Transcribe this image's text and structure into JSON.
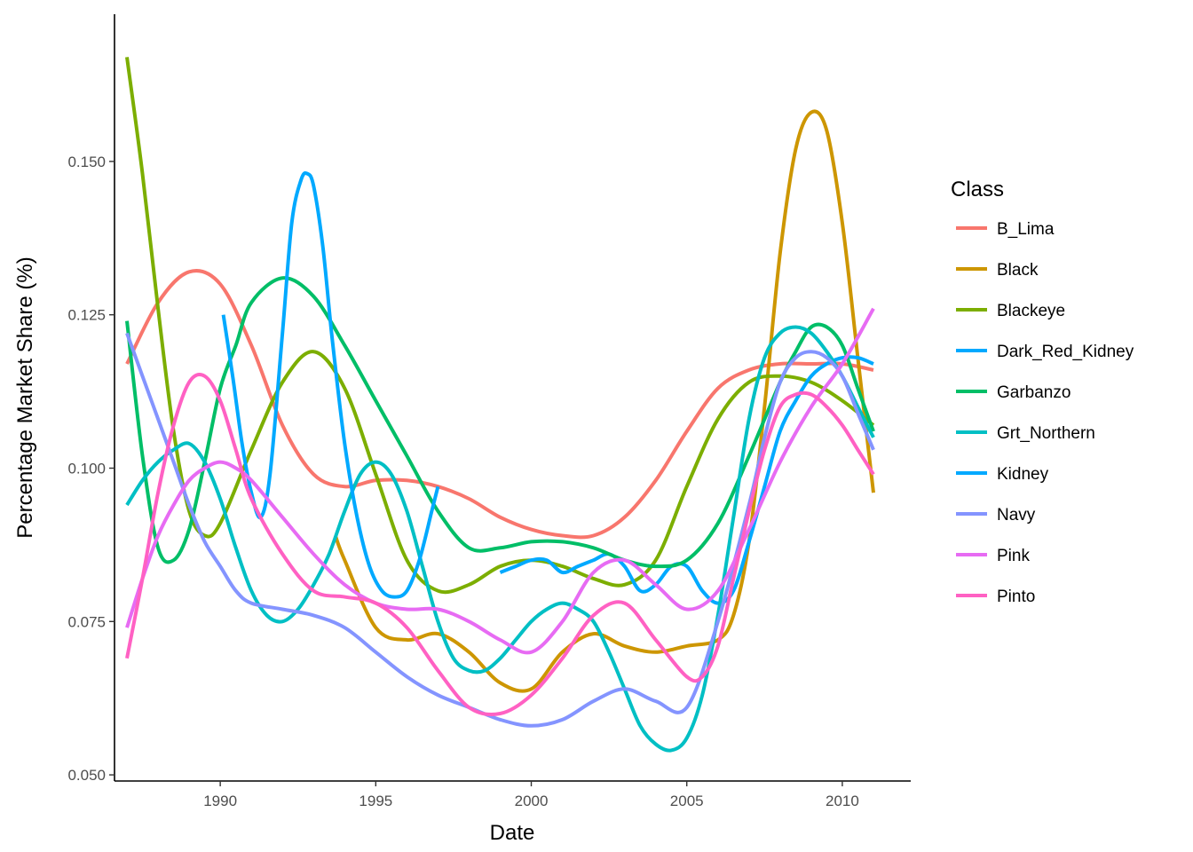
{
  "chart_data": {
    "type": "line",
    "xlabel": "Date",
    "ylabel": "Percentage Market Share (%)",
    "xlim": [
      1986.6,
      2012.2
    ],
    "ylim": [
      0.049,
      0.174
    ],
    "x_ticks": [
      1990,
      1995,
      2000,
      2005,
      2010
    ],
    "y_ticks": [
      0.05,
      0.075,
      0.1,
      0.125,
      0.15
    ],
    "x_tick_labels": [
      "1990",
      "1995",
      "2000",
      "2005",
      "2010"
    ],
    "y_tick_labels": [
      "0.050",
      "0.075",
      "0.100",
      "0.125",
      "0.150"
    ],
    "grid": false,
    "legend": {
      "title": "Class",
      "placement": "right"
    },
    "series": [
      {
        "name": "B_Lima",
        "color": "#F8766D",
        "x": [
          1987,
          1988,
          1989,
          1990,
          1991,
          1992,
          1993,
          1994,
          1995,
          1996,
          1997,
          1998,
          1999,
          2000,
          2001,
          2002,
          2003,
          2004,
          2005,
          2006,
          2007,
          2008,
          2009,
          2010,
          2011
        ],
        "y": [
          0.117,
          0.127,
          0.132,
          0.13,
          0.12,
          0.107,
          0.099,
          0.097,
          0.098,
          0.098,
          0.097,
          0.095,
          0.092,
          0.09,
          0.089,
          0.089,
          0.092,
          0.098,
          0.106,
          0.113,
          0.116,
          0.117,
          0.117,
          0.117,
          0.116
        ]
      },
      {
        "name": "Black",
        "color": "#CD9600",
        "x": [
          1993.7,
          1994,
          1995,
          1996,
          1997,
          1998,
          1999,
          2000,
          2001,
          2002,
          2003,
          2004,
          2005,
          2006,
          2006.5,
          2007,
          2007.5,
          2008,
          2008.5,
          2009,
          2009.5,
          2010,
          2010.5,
          2011
        ],
        "y": [
          0.089,
          0.085,
          0.074,
          0.072,
          0.073,
          0.07,
          0.065,
          0.064,
          0.07,
          0.073,
          0.071,
          0.07,
          0.071,
          0.072,
          0.076,
          0.088,
          0.11,
          0.135,
          0.152,
          0.158,
          0.155,
          0.14,
          0.118,
          0.096
        ]
      },
      {
        "name": "Blackeye",
        "color": "#7CAE00",
        "x": [
          1987,
          1987.5,
          1988,
          1988.5,
          1989,
          1989.5,
          1990,
          1991,
          1992,
          1993,
          1994,
          1995,
          1996,
          1997,
          1998,
          1999,
          2000,
          2001,
          2002,
          2003,
          2004,
          2005,
          2006,
          2007,
          2008,
          2009,
          2010,
          2011
        ],
        "y": [
          0.167,
          0.148,
          0.126,
          0.106,
          0.093,
          0.089,
          0.091,
          0.103,
          0.114,
          0.119,
          0.113,
          0.099,
          0.085,
          0.08,
          0.081,
          0.084,
          0.085,
          0.084,
          0.082,
          0.081,
          0.085,
          0.097,
          0.108,
          0.114,
          0.115,
          0.114,
          0.111,
          0.107
        ]
      },
      {
        "name": "Dark_Red_Kidney",
        "color": "#00A9FF",
        "x": [
          1999,
          1999.5,
          2000,
          2000.5,
          2001,
          2001.5,
          2002,
          2002.5,
          2003,
          2003.5,
          2004,
          2004.5,
          2005,
          2005.5,
          2006,
          2006.5,
          2007,
          2007.5,
          2008,
          2008.5,
          2009,
          2009.5,
          2010,
          2010.5,
          2011
        ],
        "y": [
          0.083,
          0.084,
          0.085,
          0.085,
          0.083,
          0.084,
          0.085,
          0.086,
          0.084,
          0.08,
          0.081,
          0.084,
          0.084,
          0.08,
          0.078,
          0.08,
          0.088,
          0.097,
          0.106,
          0.111,
          0.115,
          0.117,
          0.118,
          0.118,
          0.117
        ]
      },
      {
        "name": "Garbanzo",
        "color": "#00BE67",
        "x": [
          1987,
          1987.5,
          1988,
          1988.5,
          1989,
          1989.5,
          1990,
          1990.5,
          1991,
          1992,
          1993,
          1994,
          1995,
          1996,
          1997,
          1998,
          1999,
          2000,
          2001,
          2002,
          2003,
          2004,
          2005,
          2006,
          2007,
          2008,
          2008.5,
          2009,
          2009.5,
          2010,
          2010.5,
          2011
        ],
        "y": [
          0.124,
          0.102,
          0.087,
          0.085,
          0.09,
          0.101,
          0.113,
          0.12,
          0.127,
          0.131,
          0.128,
          0.12,
          0.111,
          0.102,
          0.093,
          0.087,
          0.087,
          0.088,
          0.088,
          0.087,
          0.085,
          0.084,
          0.085,
          0.091,
          0.102,
          0.114,
          0.119,
          0.123,
          0.123,
          0.12,
          0.113,
          0.106
        ]
      },
      {
        "name": "Grt_Northern",
        "color": "#00BFC4",
        "x": [
          1987,
          1987.5,
          1988,
          1988.5,
          1989,
          1989.5,
          1990,
          1990.5,
          1991,
          1991.5,
          1992,
          1992.5,
          1993,
          1993.5,
          1994,
          1994.5,
          1995,
          1995.5,
          1996,
          1996.5,
          1997,
          1997.5,
          1998,
          1998.5,
          1999,
          1999.5,
          2000,
          2000.5,
          2001,
          2001.5,
          2002,
          2002.5,
          2003,
          2003.5,
          2004,
          2004.5,
          2005,
          2005.5,
          2006,
          2006.5,
          2007,
          2007.5,
          2008,
          2008.5,
          2009,
          2009.5,
          2010,
          2010.5,
          2011
        ],
        "y": [
          0.094,
          0.098,
          0.101,
          0.103,
          0.104,
          0.101,
          0.095,
          0.087,
          0.08,
          0.076,
          0.075,
          0.077,
          0.081,
          0.086,
          0.093,
          0.099,
          0.101,
          0.099,
          0.093,
          0.084,
          0.075,
          0.069,
          0.067,
          0.067,
          0.069,
          0.072,
          0.075,
          0.077,
          0.078,
          0.077,
          0.075,
          0.07,
          0.064,
          0.058,
          0.055,
          0.054,
          0.056,
          0.063,
          0.076,
          0.092,
          0.108,
          0.118,
          0.122,
          0.123,
          0.122,
          0.119,
          0.115,
          0.11,
          0.105
        ]
      },
      {
        "name": "Kidney",
        "color": "#00A9FF",
        "x": [
          1990.1,
          1990.4,
          1990.7,
          1991,
          1991.3,
          1991.6,
          1992,
          1992.3,
          1992.6,
          1992.8,
          1993,
          1993.3,
          1993.6,
          1994,
          1994.4,
          1994.8,
          1995.2,
          1995.6,
          1996,
          1996.4,
          1996.8,
          1997
        ],
        "y": [
          0.125,
          0.115,
          0.104,
          0.096,
          0.092,
          0.099,
          0.122,
          0.14,
          0.147,
          0.148,
          0.146,
          0.136,
          0.121,
          0.104,
          0.092,
          0.084,
          0.08,
          0.079,
          0.08,
          0.085,
          0.093,
          0.097
        ]
      },
      {
        "name": "Navy",
        "color": "#8494FF",
        "x": [
          1987,
          1987.5,
          1988,
          1988.5,
          1989,
          1989.5,
          1990,
          1990.5,
          1991,
          1992,
          1993,
          1994,
          1995,
          1996,
          1997,
          1998,
          1999,
          2000,
          2001,
          2002,
          2003,
          2004,
          2005,
          2006,
          2007,
          2007.5,
          2008,
          2008.5,
          2009,
          2009.5,
          2010,
          2010.5,
          2011
        ],
        "y": [
          0.122,
          0.115,
          0.108,
          0.101,
          0.094,
          0.088,
          0.084,
          0.08,
          0.078,
          0.077,
          0.076,
          0.074,
          0.07,
          0.066,
          0.063,
          0.061,
          0.059,
          0.058,
          0.059,
          0.062,
          0.064,
          0.062,
          0.061,
          0.075,
          0.094,
          0.105,
          0.114,
          0.118,
          0.119,
          0.118,
          0.115,
          0.109,
          0.103
        ]
      },
      {
        "name": "Pink",
        "color": "#E76BF3",
        "x": [
          1987,
          1987.5,
          1988,
          1988.5,
          1989,
          1989.5,
          1990,
          1990.5,
          1991,
          1992,
          1993,
          1994,
          1995,
          1996,
          1997,
          1998,
          1999,
          2000,
          2001,
          2002,
          2003,
          2004,
          2005,
          2006,
          2007,
          2008,
          2009,
          2010,
          2011
        ],
        "y": [
          0.074,
          0.082,
          0.089,
          0.094,
          0.098,
          0.1,
          0.101,
          0.1,
          0.098,
          0.092,
          0.086,
          0.081,
          0.078,
          0.077,
          0.077,
          0.075,
          0.072,
          0.07,
          0.075,
          0.083,
          0.085,
          0.081,
          0.077,
          0.08,
          0.09,
          0.101,
          0.11,
          0.117,
          0.126
        ]
      },
      {
        "name": "Pinto",
        "color": "#FF61C3",
        "x": [
          1987,
          1987.5,
          1988,
          1988.5,
          1989,
          1989.5,
          1990,
          1990.5,
          1991,
          1992,
          1993,
          1994,
          1995,
          1996,
          1997,
          1998,
          1999,
          2000,
          2001,
          2002,
          2003,
          2004,
          2005,
          2005.5,
          2006,
          2006.5,
          2007,
          2007.5,
          2008,
          2008.5,
          2009,
          2009.5,
          2010,
          2010.5,
          2011
        ],
        "y": [
          0.069,
          0.082,
          0.096,
          0.107,
          0.114,
          0.115,
          0.111,
          0.103,
          0.095,
          0.086,
          0.08,
          0.079,
          0.078,
          0.074,
          0.067,
          0.061,
          0.06,
          0.063,
          0.069,
          0.076,
          0.078,
          0.072,
          0.066,
          0.066,
          0.071,
          0.082,
          0.093,
          0.103,
          0.11,
          0.112,
          0.112,
          0.11,
          0.107,
          0.103,
          0.099
        ]
      }
    ]
  }
}
